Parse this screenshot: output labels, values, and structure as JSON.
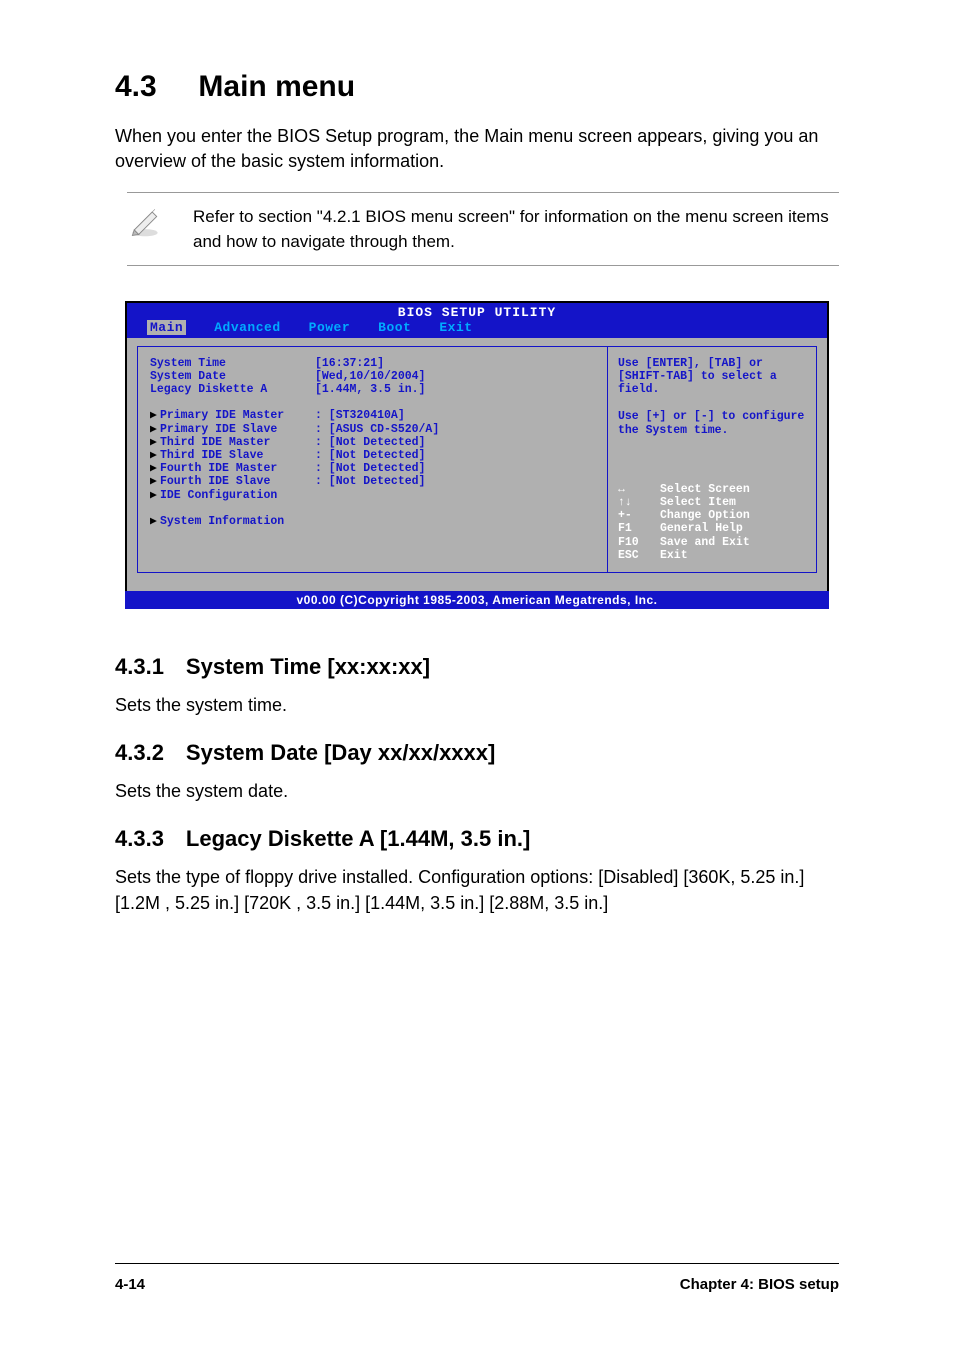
{
  "heading": {
    "number": "4.3",
    "title": "Main menu"
  },
  "intro": "When you enter the BIOS Setup program, the Main menu screen appears, giving you an overview of the basic system information.",
  "note": "Refer to section \"4.2.1  BIOS menu screen\" for information on the menu screen items and how to navigate through them.",
  "bios": {
    "title": "BIOS SETUP UTILITY",
    "menu": [
      "Main",
      "Advanced",
      "Power",
      "Boot",
      "Exit"
    ],
    "active_menu": 0,
    "left_rows": [
      {
        "label": "System Time",
        "value": "[16:37:21]",
        "arrow": false
      },
      {
        "label": "System Date",
        "value": "[Wed,10/10/2004]",
        "arrow": false
      },
      {
        "label": "Legacy Diskette A",
        "value": "[1.44M, 3.5 in.]",
        "arrow": false
      },
      {
        "spacer": true
      },
      {
        "label": "Primary IDE Master",
        "value": ": [ST320410A]",
        "arrow": true
      },
      {
        "label": "Primary IDE Slave",
        "value": ": [ASUS CD-S520/A]",
        "arrow": true
      },
      {
        "label": "Third IDE Master",
        "value": ": [Not Detected]",
        "arrow": true
      },
      {
        "label": "Third IDE Slave",
        "value": ": [Not Detected]",
        "arrow": true
      },
      {
        "label": "Fourth IDE Master",
        "value": ": [Not Detected]",
        "arrow": true
      },
      {
        "label": "Fourth IDE Slave",
        "value": ": [Not Detected]",
        "arrow": true
      },
      {
        "label": "IDE Configuration",
        "value": "",
        "arrow": true
      },
      {
        "spacer": true
      },
      {
        "label": "System Information",
        "value": "",
        "arrow": true
      }
    ],
    "help1": "Use [ENTER], [TAB] or [SHIFT-TAB] to select a field.",
    "help2": "Use [+] or [-] to configure the System time.",
    "nav": [
      {
        "key": "↔",
        "txt": "Select Screen"
      },
      {
        "key": "↑↓",
        "txt": "Select Item"
      },
      {
        "key": "+-",
        "txt": "Change Option"
      },
      {
        "key": "F1",
        "txt": "General Help"
      },
      {
        "key": "F10",
        "txt": "Save and Exit"
      },
      {
        "key": "ESC",
        "txt": "Exit"
      }
    ],
    "footer": "v00.00 (C)Copyright 1985-2003, American Megatrends, Inc."
  },
  "sections": [
    {
      "num": "4.3.1",
      "title": "System Time [xx:xx:xx]",
      "text": "Sets the system time."
    },
    {
      "num": "4.3.2",
      "title": "System Date [Day xx/xx/xxxx]",
      "text": "Sets the system date."
    },
    {
      "num": "4.3.3",
      "title": "Legacy Diskette A [1.44M, 3.5 in.]",
      "text": "Sets the type of floppy drive installed. Configuration options: [Disabled] [360K, 5.25 in.] [1.2M , 5.25 in.] [720K , 3.5 in.] [1.44M, 3.5 in.] [2.88M, 3.5 in.]"
    }
  ],
  "page_footer": {
    "left": "4-14",
    "right": "Chapter 4: BIOS setup"
  },
  "colors": {
    "bios_blue": "#1414c8",
    "bios_cyan": "#00aaff",
    "bios_grey": "#b0b0b0"
  }
}
